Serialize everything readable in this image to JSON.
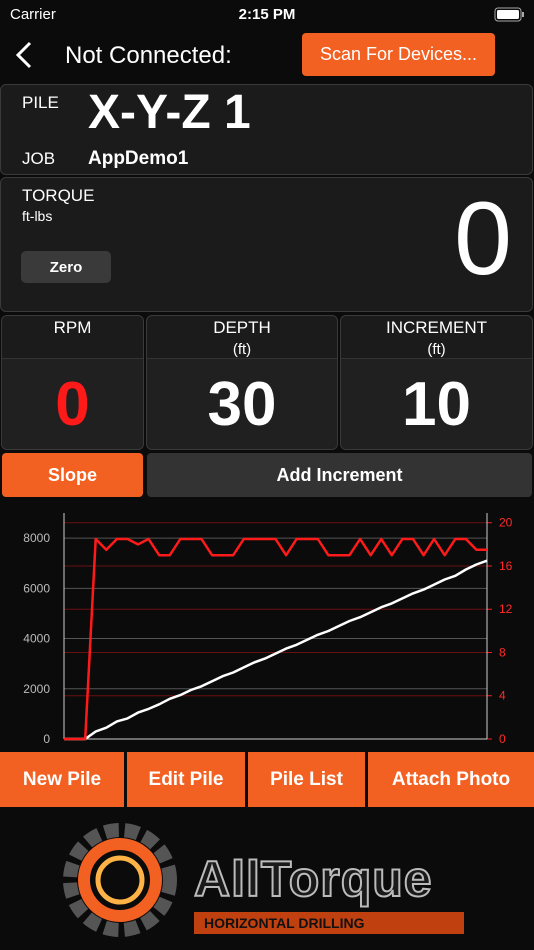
{
  "status_bar": {
    "carrier": "Carrier",
    "time": "2:15 PM"
  },
  "nav": {
    "title": "Not Connected:",
    "button": "Scan For Devices..."
  },
  "pile": {
    "label": "PILE",
    "value": "X-Y-Z 1",
    "job_label": "JOB",
    "job": "AppDemo1"
  },
  "torque": {
    "label": "TORQUE",
    "unit": "ft-lbs",
    "button": "Zero",
    "value": 0
  },
  "stats": [
    {
      "label": "RPM",
      "value": 0
    },
    {
      "label": "DEPTH",
      "unit": "(ft)",
      "value": 30
    },
    {
      "label": "INCREMENT",
      "unit": "(ft)",
      "value": 10
    }
  ],
  "actions": [
    "Slope",
    "Add Increment"
  ],
  "chart": {
    "type": "line",
    "ylim": [
      0,
      9000
    ],
    "yticks": [
      0,
      2000,
      4000,
      6000,
      8000
    ],
    "y2lim": [
      0,
      20.9
    ],
    "y2ticks": [
      0,
      4,
      8,
      12,
      16,
      20
    ],
    "series": [
      {
        "color": "#ffffff",
        "values": [
          0,
          0,
          0,
          300,
          450,
          700,
          820,
          1050,
          1200,
          1380,
          1600,
          1750,
          1950,
          2100,
          2300,
          2500,
          2650,
          2850,
          3050,
          3200,
          3400,
          3600,
          3750,
          3950,
          4150,
          4300,
          4500,
          4700,
          4850,
          5050,
          5250,
          5400,
          5600,
          5800,
          5950,
          6150,
          6350,
          6500,
          6750,
          6950,
          7100
        ]
      },
      {
        "color": "#ff1a1a",
        "axis": "y2",
        "values": [
          0,
          0,
          0,
          18.5,
          17.5,
          18.5,
          18.5,
          18,
          18.5,
          17,
          17,
          18.5,
          18.5,
          18.5,
          17,
          17,
          17,
          18.5,
          18.5,
          18.5,
          18.5,
          17,
          18.5,
          18.5,
          18.5,
          17,
          17,
          17,
          18.5,
          17,
          18.5,
          17,
          18.5,
          18.5,
          17,
          18.5,
          17,
          18.5,
          18.5,
          17.5,
          17.5
        ]
      }
    ]
  },
  "buttons": [
    "New Pile",
    "Edit Pile",
    "Pile List",
    "Attach Photo"
  ],
  "logo": {
    "brand": "AllTorque",
    "tagline": "HORIZONTAL DRILLING"
  }
}
